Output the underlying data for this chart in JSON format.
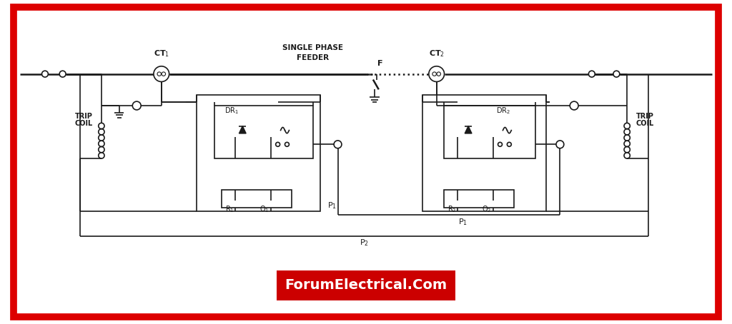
{
  "bg_color": "#ffffff",
  "border_color": "#dd0000",
  "line_color": "#1a1a1a",
  "forum_text": "ForumElectrical.Com",
  "forum_bg": "#cc0000",
  "forum_text_color": "white",
  "figsize": [
    10.24,
    4.54
  ],
  "dpi": 100,
  "xlim": [
    0,
    102
  ],
  "ylim": [
    0,
    46
  ]
}
